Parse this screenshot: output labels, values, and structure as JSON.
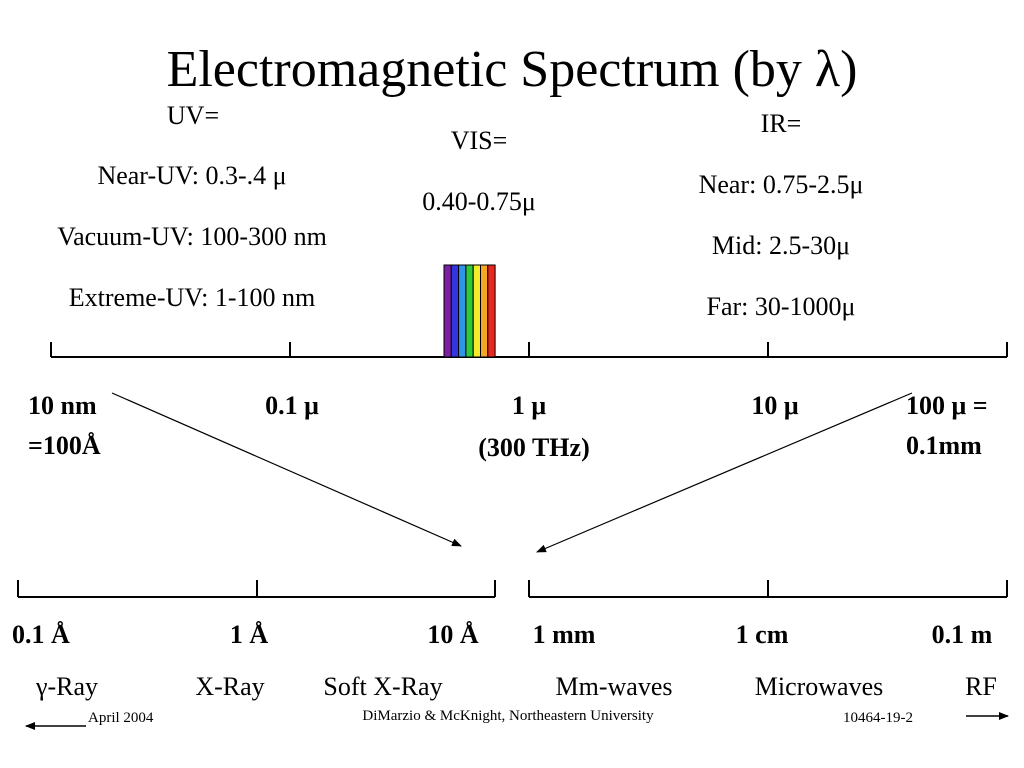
{
  "title": "Electromagnetic Spectrum (by λ)",
  "uv": {
    "header": "UV=",
    "near": "Near-UV:  0.3-.4 μ",
    "vacuum": "Vacuum-UV: 100-300 nm",
    "extreme": "Extreme-UV:  1-100 nm"
  },
  "vis": {
    "header": "VIS=",
    "range": "0.40-0.75μ",
    "band_colors": [
      "#7a1fa2",
      "#3535e0",
      "#2f95e8",
      "#2fc93a",
      "#f2ec2a",
      "#f5a623",
      "#e8271f"
    ]
  },
  "ir": {
    "header": "IR=",
    "near": "Near:  0.75-2.5μ",
    "mid": "Mid:  2.5-30μ",
    "far": "Far: 30-1000μ"
  },
  "upper_scale": {
    "ticks": [
      {
        "line1": "10 nm",
        "line2": "=100Å"
      },
      {
        "line1": "0.1 μ",
        "line2": ""
      },
      {
        "line1": "1 μ",
        "line2": "(300 THz)"
      },
      {
        "line1": "10 μ",
        "line2": ""
      },
      {
        "line1": "100 μ =",
        "line2": "0.1mm"
      }
    ]
  },
  "lower_left_scale": {
    "ticks": [
      "0.1 Å",
      "1 Å",
      "10 Å"
    ]
  },
  "lower_right_scale": {
    "ticks": [
      "1 mm",
      "1 cm",
      "0.1 m"
    ]
  },
  "bands": [
    "γ-Ray",
    "X-Ray",
    "Soft X-Ray",
    "Mm-waves",
    "Microwaves",
    "RF"
  ],
  "footer": {
    "date": "April 2004",
    "authors": "DiMarzio & McKnight, Northeastern University",
    "code": "10464-19-2"
  }
}
